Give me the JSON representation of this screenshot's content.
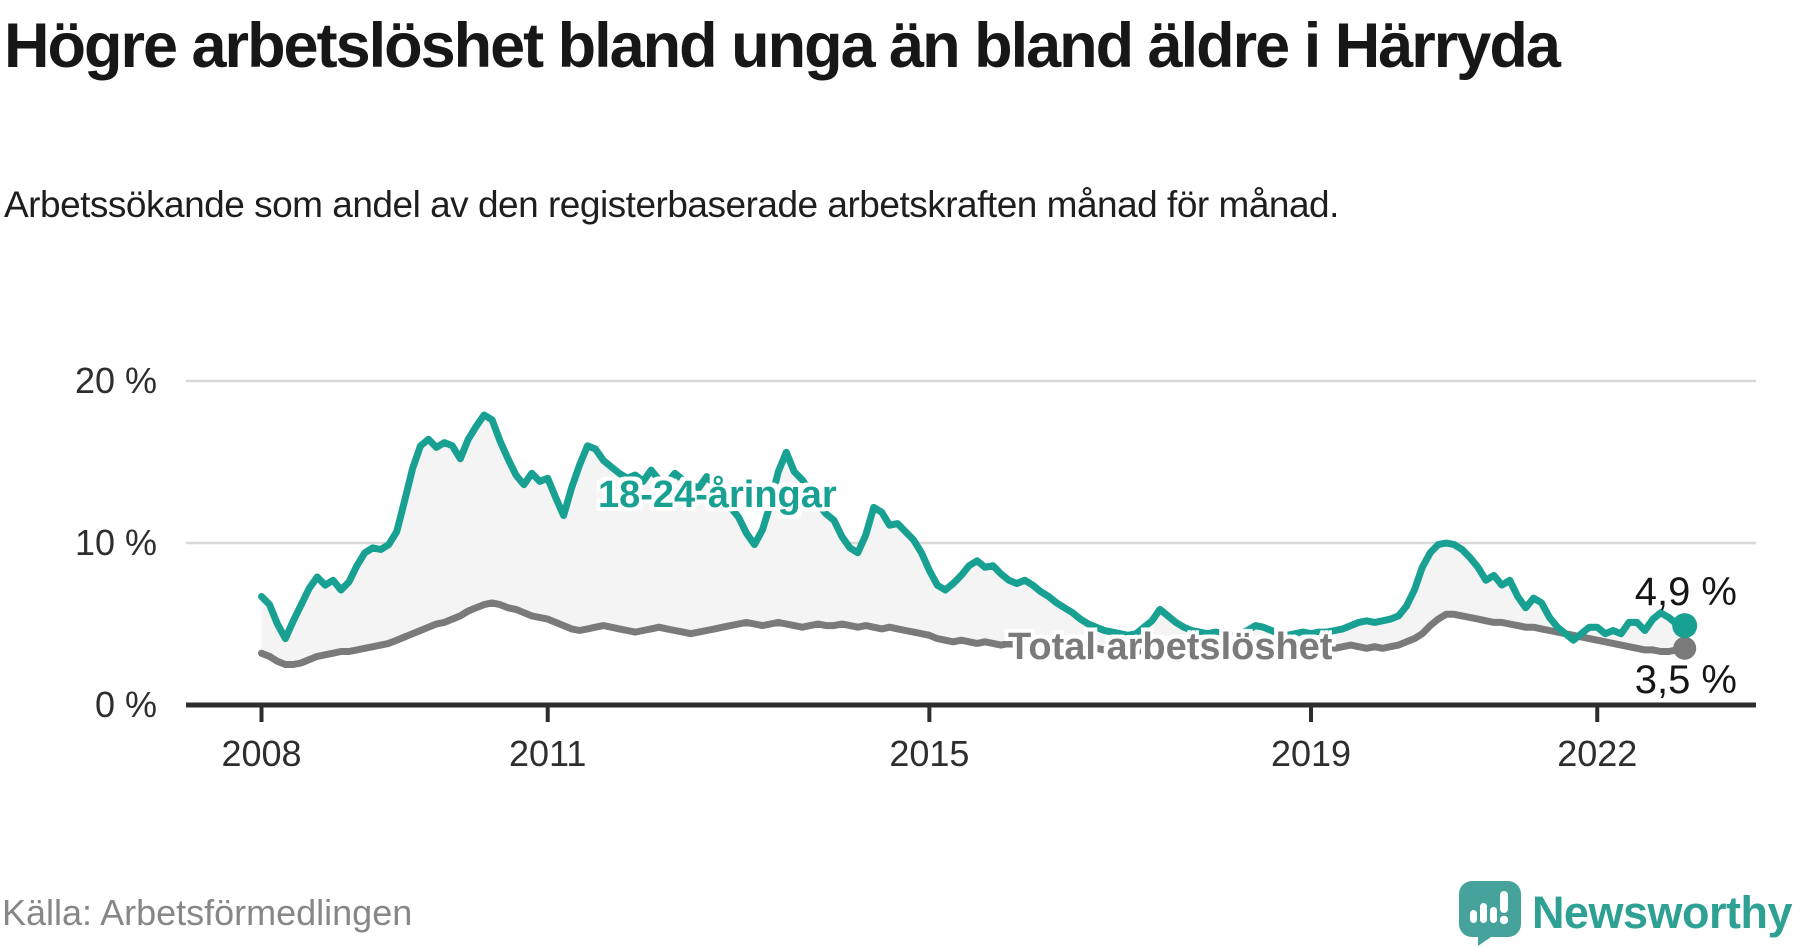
{
  "title": "Högre arbetslöshet bland unga än bland äldre i Härryda",
  "subtitle": "Arbetssökande som andel av den registerbaserade arbetskraften månad för månad.",
  "source": "Källa: Arbetsförmedlingen",
  "brand": {
    "name": "Newsworthy",
    "icon": "newsworthy-speech-bubble-chart-icon"
  },
  "colors": {
    "youth_line": "#18a192",
    "total_line": "#7a7a7a",
    "band_fill": "#f4f4f4",
    "gridline": "#d8d8d8",
    "axis": "#2d2d2d",
    "brand_teal": "#46a39b",
    "brand_text": "#2fa094"
  },
  "chart_data": {
    "type": "line",
    "title": "Högre arbetslöshet bland unga än bland äldre i Härryda",
    "xlabel": "",
    "ylabel": "Arbetssökande som andel av den registerbaserade arbetskraften",
    "unit": "%",
    "frequency": "monthly",
    "x_start": "2008-01",
    "x_end": "2022-12",
    "ylim": [
      0,
      22
    ],
    "grid": "horizontal",
    "legend_position": "inline-labels",
    "x_ticks": [
      {
        "year": 2008,
        "label": "2008"
      },
      {
        "year": 2011,
        "label": "2011"
      },
      {
        "year": 2015,
        "label": "2015"
      },
      {
        "year": 2019,
        "label": "2019"
      },
      {
        "year": 2022,
        "label": "2022"
      }
    ],
    "y_ticks": [
      {
        "value": 0,
        "label": "0 %"
      },
      {
        "value": 10,
        "label": "10 %"
      },
      {
        "value": 20,
        "label": "20 %"
      }
    ],
    "series": [
      {
        "name": "18-24-åringar",
        "color": "#18a192",
        "end_value": 4.9,
        "end_label": "4,9 %",
        "values": [
          6.7,
          6.2,
          5.0,
          4.1,
          5.2,
          6.2,
          7.2,
          7.9,
          7.4,
          7.7,
          7.1,
          7.6,
          8.6,
          9.4,
          9.7,
          9.6,
          9.9,
          10.7,
          12.6,
          14.6,
          16.0,
          16.4,
          15.9,
          16.2,
          16.0,
          15.2,
          16.4,
          17.2,
          17.9,
          17.6,
          16.3,
          15.2,
          14.2,
          13.6,
          14.3,
          13.8,
          14.0,
          12.8,
          11.7,
          13.4,
          14.8,
          16.0,
          15.8,
          15.1,
          14.7,
          14.3,
          14.0,
          14.2,
          13.8,
          14.5,
          13.9,
          13.7,
          14.3,
          13.9,
          13.6,
          13.4,
          14.1,
          13.6,
          13.0,
          12.2,
          11.6,
          10.6,
          9.9,
          10.8,
          12.4,
          14.4,
          15.6,
          14.4,
          13.9,
          13.2,
          12.4,
          11.8,
          11.4,
          10.4,
          9.7,
          9.4,
          10.5,
          12.2,
          11.9,
          11.1,
          11.2,
          10.7,
          10.2,
          9.4,
          8.3,
          7.4,
          7.1,
          7.5,
          8.0,
          8.6,
          8.9,
          8.5,
          8.6,
          8.1,
          7.7,
          7.5,
          7.7,
          7.4,
          7.0,
          6.7,
          6.3,
          6.0,
          5.7,
          5.3,
          5.0,
          4.8,
          4.6,
          4.5,
          4.4,
          4.3,
          4.4,
          4.8,
          5.2,
          5.9,
          5.5,
          5.1,
          4.8,
          4.6,
          4.5,
          4.4,
          4.5,
          4.4,
          4.3,
          4.4,
          4.6,
          4.9,
          4.8,
          4.6,
          4.4,
          4.3,
          4.4,
          4.5,
          4.4,
          4.5,
          4.5,
          4.6,
          4.7,
          4.9,
          5.1,
          5.2,
          5.1,
          5.2,
          5.3,
          5.5,
          6.1,
          7.1,
          8.5,
          9.4,
          9.9,
          10.0,
          9.9,
          9.6,
          9.1,
          8.5,
          7.7,
          8.0,
          7.4,
          7.7,
          6.7,
          6.0,
          6.6,
          6.3,
          5.4,
          4.8,
          4.4,
          4.0,
          4.4,
          4.8,
          4.8,
          4.4,
          4.6,
          4.4,
          5.1,
          5.1,
          4.6,
          5.3,
          5.7,
          5.4,
          5.0,
          4.9
        ]
      },
      {
        "name": "Total arbetslöshet",
        "color": "#7a7a7a",
        "end_value": 3.5,
        "end_label": "3,5 %",
        "values": [
          3.2,
          3.0,
          2.7,
          2.5,
          2.5,
          2.6,
          2.8,
          3.0,
          3.1,
          3.2,
          3.3,
          3.3,
          3.4,
          3.5,
          3.6,
          3.7,
          3.8,
          4.0,
          4.2,
          4.4,
          4.6,
          4.8,
          5.0,
          5.1,
          5.3,
          5.5,
          5.8,
          6.0,
          6.2,
          6.3,
          6.2,
          6.0,
          5.9,
          5.7,
          5.5,
          5.4,
          5.3,
          5.1,
          4.9,
          4.7,
          4.6,
          4.7,
          4.8,
          4.9,
          4.8,
          4.7,
          4.6,
          4.5,
          4.6,
          4.7,
          4.8,
          4.7,
          4.6,
          4.5,
          4.4,
          4.5,
          4.6,
          4.7,
          4.8,
          4.9,
          5.0,
          5.1,
          5.0,
          4.9,
          5.0,
          5.1,
          5.0,
          4.9,
          4.8,
          4.9,
          5.0,
          4.9,
          4.9,
          5.0,
          4.9,
          4.8,
          4.9,
          4.8,
          4.7,
          4.8,
          4.7,
          4.6,
          4.5,
          4.4,
          4.3,
          4.1,
          4.0,
          3.9,
          4.0,
          3.9,
          3.8,
          3.9,
          3.8,
          3.7,
          3.8,
          3.7,
          3.8,
          3.7,
          3.6,
          3.7,
          3.6,
          3.5,
          3.6,
          3.7,
          3.6,
          3.5,
          3.4,
          3.5,
          3.4,
          3.5,
          3.4,
          3.3,
          3.4,
          3.5,
          3.4,
          3.3,
          3.2,
          3.3,
          3.4,
          3.3,
          3.3,
          3.2,
          3.3,
          3.2,
          3.3,
          3.4,
          3.3,
          3.4,
          3.3,
          3.4,
          3.5,
          3.4,
          3.5,
          3.4,
          3.5,
          3.5,
          3.6,
          3.7,
          3.6,
          3.5,
          3.6,
          3.5,
          3.6,
          3.7,
          3.9,
          4.1,
          4.4,
          4.9,
          5.3,
          5.6,
          5.6,
          5.5,
          5.4,
          5.3,
          5.2,
          5.1,
          5.1,
          5.0,
          4.9,
          4.8,
          4.8,
          4.7,
          4.6,
          4.5,
          4.4,
          4.3,
          4.2,
          4.1,
          4.0,
          3.9,
          3.8,
          3.7,
          3.6,
          3.5,
          3.4,
          3.4,
          3.3,
          3.3,
          3.4,
          3.5
        ]
      }
    ]
  }
}
